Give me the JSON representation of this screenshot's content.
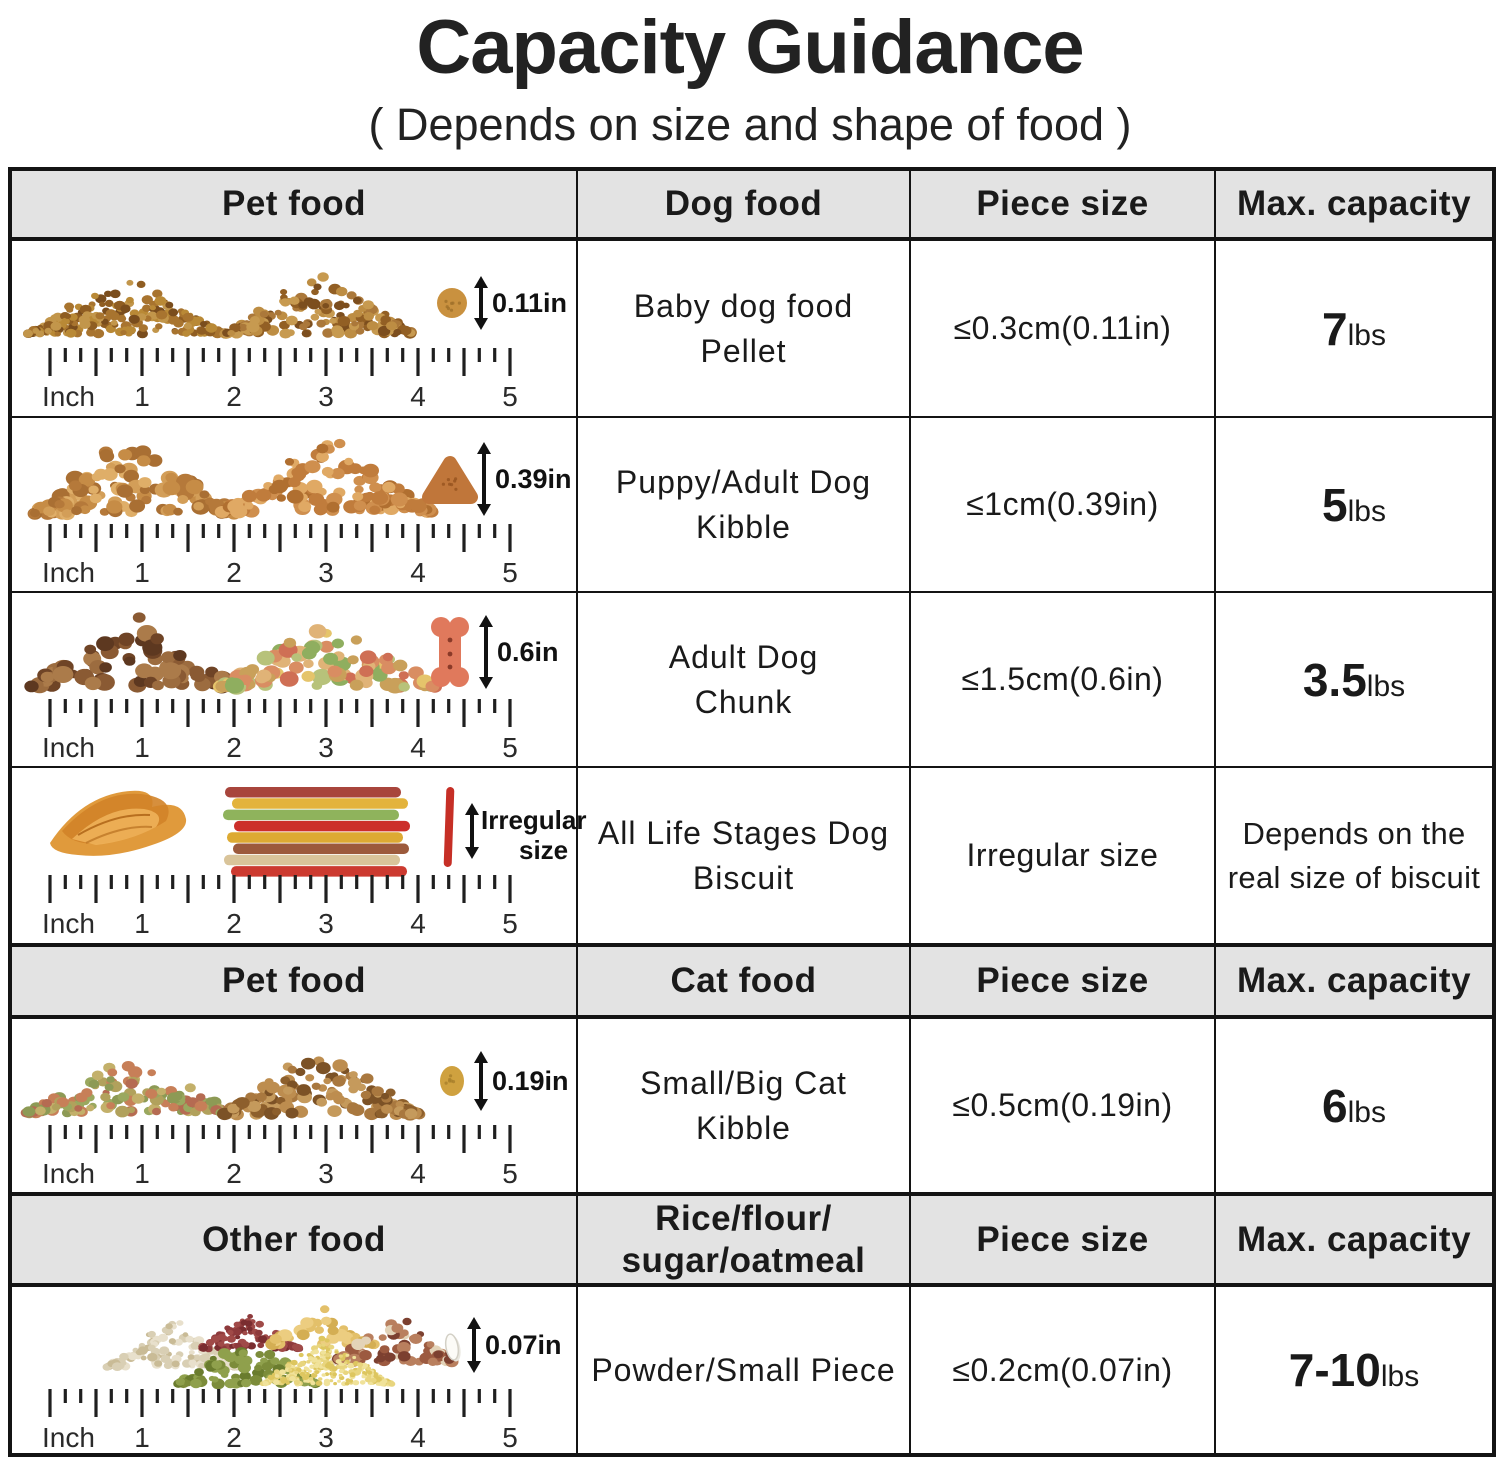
{
  "page": {
    "title": "Capacity Guidance",
    "subtitle": "( Depends on size and shape of food )"
  },
  "ruler": {
    "unit_label": "Inch",
    "numbers": [
      "1",
      "2",
      "3",
      "4",
      "5"
    ]
  },
  "table": {
    "headers": [
      {
        "col1": "Pet food",
        "col2": "Dog food",
        "col3": "Piece size",
        "col4": "Max. capacity"
      },
      {
        "col1": "Pet food",
        "col2": "Cat food",
        "col3": "Piece size",
        "col4": "Max. capacity"
      },
      {
        "col1": "Other food",
        "col2_line1": "Rice/flour/",
        "col2_line2": "sugar/oatmeal",
        "col3": "Piece size",
        "col4": "Max. capacity"
      }
    ],
    "rows": [
      {
        "food_name_line1": "Baby dog food",
        "food_name_line2": "Pellet",
        "piece_size": "≤0.3cm(0.11in)",
        "capacity_value": "7",
        "capacity_unit": "lbs",
        "size_label": "0.11in",
        "visual": {
          "photo": "baby-dog-pellet-piles",
          "layout": "pellet",
          "pile_colors": [
            [
              "#a8742f",
              "#8f5d22",
              "#b98936",
              "#7a4d1d",
              "#c2964b"
            ],
            [
              "#ab783a",
              "#925f24",
              "#bd8d43",
              "#7c4e1e",
              "#c79a50"
            ]
          ],
          "piece_color": "#c9913f",
          "piece_speckle": "#a0702a"
        }
      },
      {
        "food_name_line1": "Puppy/Adult Dog",
        "food_name_line2": "Kibble",
        "piece_size": "≤1cm(0.39in)",
        "capacity_value": "5",
        "capacity_unit": "lbs",
        "size_label": "0.39in",
        "visual": {
          "photo": "puppy-adult-kibble-piles",
          "layout": "kibble",
          "pile_colors": [
            [
              "#c68c46",
              "#b5793a",
              "#d39e58",
              "#a96f33",
              "#dfae68"
            ],
            [
              "#cf8f4e",
              "#c07c3c",
              "#e0a964",
              "#b06f30"
            ]
          ],
          "piece_color": "#c0763a",
          "piece_speckle": "#96541f"
        }
      },
      {
        "food_name_line1": "Adult Dog",
        "food_name_line2": "Chunk",
        "piece_size": "≤1.5cm(0.6in)",
        "capacity_value": "3.5",
        "capacity_unit": "lbs",
        "size_label": "0.6in",
        "visual": {
          "photo": "adult-dog-chunk-piles",
          "layout": "chunk",
          "pile_colors": [
            [
              "#8a5a33",
              "#6f4426",
              "#9c6c3f",
              "#5d3820",
              "#ab7b4a"
            ],
            [
              "#b7c27a",
              "#8fae5f",
              "#e5c46b",
              "#d98d62",
              "#cf6f55",
              "#e0b377",
              "#c9a05a"
            ]
          ],
          "piece_color": "#e0795c",
          "piece_speckle": "#8a3a28"
        }
      },
      {
        "food_name_line1": "All Life Stages Dog",
        "food_name_line2": "Biscuit",
        "piece_size": "Irregular size",
        "capacity_line1": "Depends on the",
        "capacity_line2": "real size of biscuit",
        "size_label": [
          "Irregular",
          "size"
        ],
        "visual": {
          "photo": "dog-biscuit-sticks",
          "layout": "biscuit",
          "jerky_colors": [
            "#e09a3c",
            "#d28328",
            "#f0b45c",
            "#b86f1f"
          ],
          "stick_colors": [
            "#a8453c",
            "#e3b33c",
            "#8fb35c",
            "#cc2f2a",
            "#ddaa33",
            "#9c5a3c",
            "#d9c49a",
            "#cc3a30"
          ],
          "piece_color": "#c62f26"
        }
      },
      {
        "food_name_line1": "Small/Big Cat",
        "food_name_line2": "Kibble",
        "piece_size": "≤0.5cm(0.19in)",
        "capacity_value": "6",
        "capacity_unit": "lbs",
        "size_label": "0.19in",
        "visual": {
          "photo": "cat-kibble-piles",
          "layout": "cat",
          "pile_colors": [
            [
              "#b1a15c",
              "#9aa85f",
              "#c77f58",
              "#b56b52",
              "#c3b06a",
              "#8d9a55"
            ],
            [
              "#a9783f",
              "#8d5f2c",
              "#bd8d4f",
              "#7c5226",
              "#c59a5c"
            ]
          ],
          "piece_color": "#cfa13f",
          "piece_speckle": "#a87f2c"
        }
      },
      {
        "food_name_line1": "Powder/Small Piece",
        "food_name_line2": "",
        "piece_size": "≤0.2cm(0.07in)",
        "capacity_value": "7-10",
        "capacity_unit": "lbs",
        "size_label": "0.07in",
        "visual": {
          "photo": "grain-bean-piles",
          "layout": "grain",
          "cluster_colors": [
            [
              "#e8e0cc",
              "#d9cfb4",
              "#c9bb96"
            ],
            [
              "#8e3a3c",
              "#7a2d30",
              "#a04a48"
            ],
            [
              "#e3c06a",
              "#d4ae53",
              "#eccd80"
            ],
            [
              "#9c5a40",
              "#b97f5e",
              "#e3d3b8",
              "#7c4030"
            ],
            [
              "#7c8c3a",
              "#6a7c2e",
              "#8fa04c"
            ],
            [
              "#e8d57e",
              "#ddc65f",
              "#f0e29a"
            ]
          ],
          "piece_color": "#fcfbf7"
        }
      }
    ]
  }
}
